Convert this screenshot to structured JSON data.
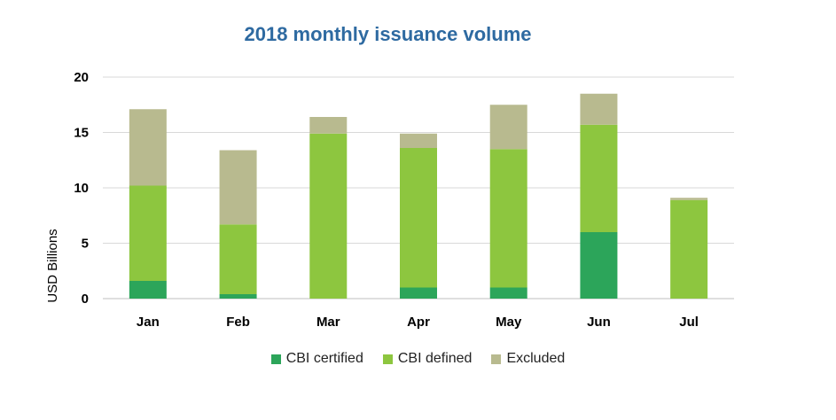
{
  "chart_data": {
    "type": "bar",
    "stacked": true,
    "title": "2018 monthly issuance volume",
    "ylabel": "USD Billions",
    "xlabel": "",
    "ylim": [
      0,
      20
    ],
    "yticks": [
      0,
      5,
      10,
      15,
      20
    ],
    "grid": true,
    "legend_position": "bottom",
    "categories": [
      "Jan",
      "Feb",
      "Mar",
      "Apr",
      "May",
      "Jun",
      "Jul"
    ],
    "series": [
      {
        "name": "CBI certified",
        "color": "#2ca55a",
        "values": [
          1.6,
          0.4,
          0,
          1.0,
          1.0,
          6.0,
          0
        ]
      },
      {
        "name": "CBI defined",
        "color": "#8dc63f",
        "values": [
          8.6,
          6.3,
          14.9,
          12.6,
          12.5,
          9.7,
          8.9
        ]
      },
      {
        "name": "Excluded",
        "color": "#b8ba8f",
        "values": [
          6.9,
          6.7,
          1.5,
          1.3,
          4.0,
          2.8,
          0.2
        ]
      }
    ]
  }
}
